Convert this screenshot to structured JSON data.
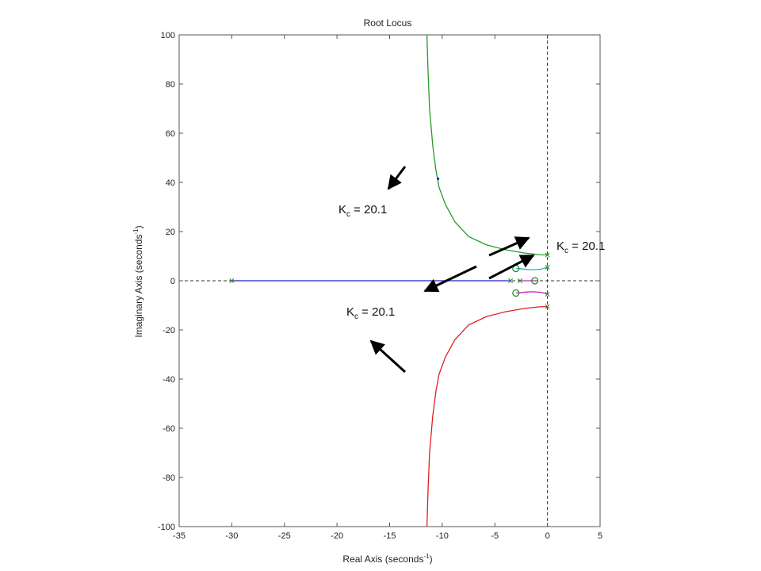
{
  "chart_data": {
    "type": "line",
    "title": "Root Locus",
    "xlabel": "Real Axis (seconds",
    "xlabel_sup": "-1",
    "xlabel_tail": ")",
    "ylabel": "Imaginary Axis (seconds",
    "ylabel_sup": "-1",
    "ylabel_tail": ")",
    "xlim": [
      -35,
      5
    ],
    "ylim": [
      -100,
      100
    ],
    "xticks": [
      -35,
      -30,
      -25,
      -20,
      -15,
      -10,
      -5,
      0,
      5
    ],
    "yticks": [
      -100,
      -80,
      -60,
      -40,
      -20,
      0,
      20,
      40,
      60,
      80,
      100
    ],
    "grid": false,
    "poles": [
      {
        "x": -30,
        "y": 0
      },
      {
        "x": 0,
        "y": 10.5
      },
      {
        "x": 0,
        "y": 5.5
      },
      {
        "x": 0,
        "y": -5.5
      },
      {
        "x": 0,
        "y": -10.5
      },
      {
        "x": -3.5,
        "y": 0
      },
      {
        "x": -2.6,
        "y": 0
      }
    ],
    "zeros": [
      {
        "x": -3,
        "y": 5
      },
      {
        "x": -3,
        "y": -5
      },
      {
        "x": -1.2,
        "y": 0
      }
    ],
    "gain_marker": {
      "x": -10.4,
      "y": 41.5
    },
    "series": [
      {
        "color": "#2020c8",
        "points": [
          [
            -30,
            0
          ],
          [
            -3.5,
            0
          ]
        ]
      },
      {
        "color": "#2a9a2a",
        "points": [
          [
            0,
            10.5
          ],
          [
            -0.8,
            10.6
          ],
          [
            -2.2,
            11.3
          ],
          [
            -4,
            12.6
          ],
          [
            -5.8,
            14.6
          ],
          [
            -7.5,
            18
          ],
          [
            -8.8,
            24
          ],
          [
            -9.7,
            31
          ],
          [
            -10.3,
            38
          ],
          [
            -10.6,
            45
          ],
          [
            -10.9,
            55
          ],
          [
            -11.2,
            70
          ],
          [
            -11.35,
            85
          ],
          [
            -11.45,
            100
          ]
        ]
      },
      {
        "color": "#e02020",
        "points": [
          [
            0,
            -10.5
          ],
          [
            -0.8,
            -10.6
          ],
          [
            -2.2,
            -11.3
          ],
          [
            -4,
            -12.6
          ],
          [
            -5.8,
            -14.6
          ],
          [
            -7.5,
            -18
          ],
          [
            -8.8,
            -24
          ],
          [
            -9.7,
            -31
          ],
          [
            -10.3,
            -38
          ],
          [
            -10.6,
            -45
          ],
          [
            -10.9,
            -55
          ],
          [
            -11.2,
            -70
          ],
          [
            -11.35,
            -85
          ],
          [
            -11.45,
            -100
          ]
        ]
      },
      {
        "color": "#20b8b8",
        "points": [
          [
            0,
            5.5
          ],
          [
            -0.6,
            4.7
          ],
          [
            -1.4,
            4.5
          ],
          [
            -2.1,
            4.6
          ],
          [
            -2.6,
            4.9
          ],
          [
            -3,
            5
          ]
        ]
      },
      {
        "color": "#c020c0",
        "points": [
          [
            0,
            -5.5
          ],
          [
            -0.6,
            -4.7
          ],
          [
            -1.4,
            -4.5
          ],
          [
            -2.1,
            -4.6
          ],
          [
            -2.6,
            -4.9
          ],
          [
            -3,
            -5
          ]
        ]
      },
      {
        "color": "#c020c0",
        "points": [
          [
            -2.6,
            0
          ],
          [
            -1.2,
            0
          ]
        ]
      }
    ],
    "annotations": [
      {
        "label": "K",
        "sub": "c",
        "text": " = 20.1"
      },
      {
        "label": "K",
        "sub": "c",
        "text": " = 20.1"
      },
      {
        "label": "K",
        "sub": "c",
        "text": " = 20.1"
      }
    ]
  }
}
